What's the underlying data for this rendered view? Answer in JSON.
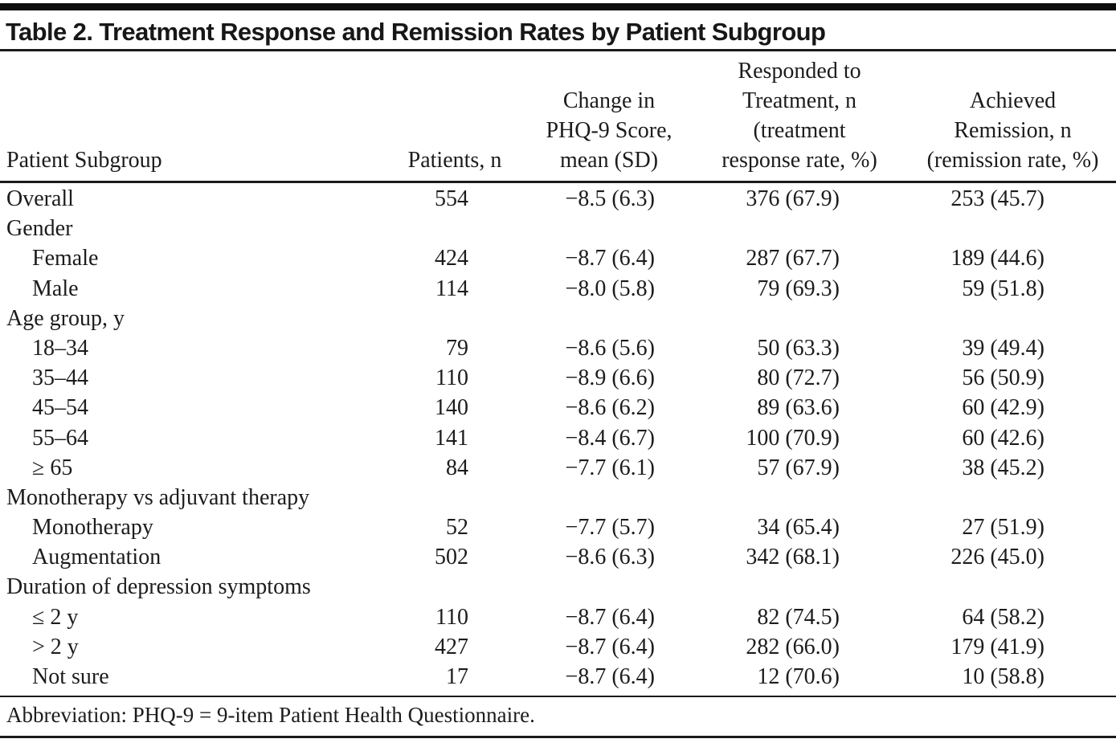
{
  "table": {
    "title": "Table 2. Treatment Response and Remission Rates by Patient Subgroup",
    "columns": {
      "subgroup": "Patient Subgroup",
      "patients": "Patients, n",
      "change": [
        "Change in",
        "PHQ-9 Score,",
        "mean (SD)"
      ],
      "responded": [
        "Responded to",
        "Treatment, n",
        "(treatment",
        "response rate, %)"
      ],
      "remission": [
        "Achieved",
        "Remission, n",
        "(remission rate, %)"
      ]
    },
    "rows": [
      {
        "type": "data",
        "indent": false,
        "label": "Overall",
        "patients": "554",
        "change": "−8.5 (6.3)",
        "responded": "376 (67.9)",
        "remission": "253 (45.7)"
      },
      {
        "type": "group",
        "label": "Gender"
      },
      {
        "type": "data",
        "indent": true,
        "label": "Female",
        "patients": "424",
        "change": "−8.7 (6.4)",
        "responded": "287 (67.7)",
        "remission": "189 (44.6)"
      },
      {
        "type": "data",
        "indent": true,
        "label": "Male",
        "patients": "114",
        "change": "−8.0 (5.8)",
        "responded": "79 (69.3)",
        "remission": "59 (51.8)"
      },
      {
        "type": "group",
        "label": "Age group, y"
      },
      {
        "type": "data",
        "indent": true,
        "label": "18–34",
        "patients": "79",
        "change": "−8.6 (5.6)",
        "responded": "50 (63.3)",
        "remission": "39 (49.4)"
      },
      {
        "type": "data",
        "indent": true,
        "label": "35–44",
        "patients": "110",
        "change": "−8.9 (6.6)",
        "responded": "80 (72.7)",
        "remission": "56 (50.9)"
      },
      {
        "type": "data",
        "indent": true,
        "label": "45–54",
        "patients": "140",
        "change": "−8.6 (6.2)",
        "responded": "89 (63.6)",
        "remission": "60 (42.9)"
      },
      {
        "type": "data",
        "indent": true,
        "label": "55–64",
        "patients": "141",
        "change": "−8.4 (6.7)",
        "responded": "100 (70.9)",
        "remission": "60 (42.6)"
      },
      {
        "type": "data",
        "indent": true,
        "label": "≥ 65",
        "patients": "84",
        "change": "−7.7 (6.1)",
        "responded": "57 (67.9)",
        "remission": "38 (45.2)"
      },
      {
        "type": "group",
        "label": "Monotherapy vs adjuvant therapy"
      },
      {
        "type": "data",
        "indent": true,
        "label": "Monotherapy",
        "patients": "52",
        "change": "−7.7 (5.7)",
        "responded": "34 (65.4)",
        "remission": "27 (51.9)"
      },
      {
        "type": "data",
        "indent": true,
        "label": "Augmentation",
        "patients": "502",
        "change": "−8.6 (6.3)",
        "responded": "342 (68.1)",
        "remission": "226 (45.0)"
      },
      {
        "type": "group",
        "label": "Duration of depression symptoms"
      },
      {
        "type": "data",
        "indent": true,
        "label": "≤ 2 y",
        "patients": "110",
        "change": "−8.7 (6.4)",
        "responded": "82 (74.5)",
        "remission": "64 (58.2)"
      },
      {
        "type": "data",
        "indent": true,
        "label": "> 2 y",
        "patients": "427",
        "change": "−8.7 (6.4)",
        "responded": "282 (66.0)",
        "remission": "179 (41.9)"
      },
      {
        "type": "data",
        "indent": true,
        "label": "Not sure",
        "patients": "17",
        "change": "−8.7 (6.4)",
        "responded": "12 (70.6)",
        "remission": "10 (58.8)"
      }
    ],
    "footnote": "Abbreviation: PHQ-9 = 9-item Patient Health Questionnaire."
  }
}
